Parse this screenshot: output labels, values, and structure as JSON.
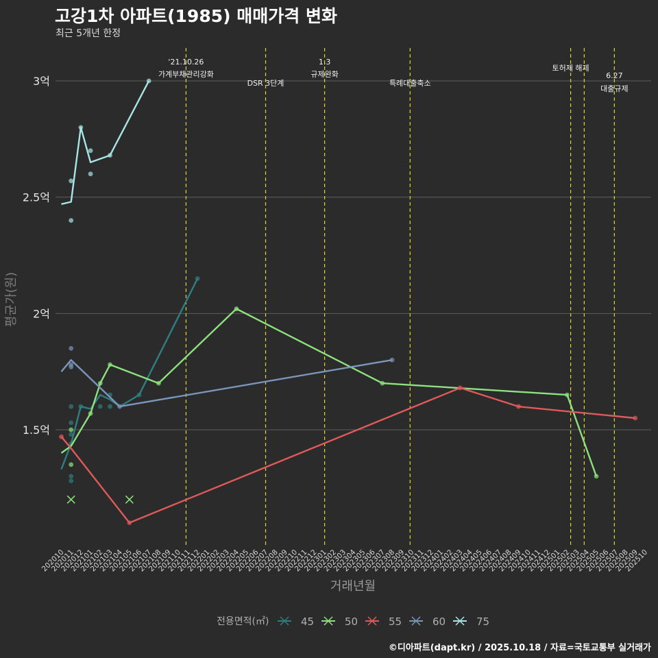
{
  "title": "고강1차 아파트(1985) 매매가격 변화",
  "subtitle": "최근 5개년 한정",
  "caption": "©디아파트(dapt.kr) / 2025.10.18 / 자료=국토교통부 실거래가",
  "chart_data": {
    "type": "line",
    "xlabel": "거래년월",
    "ylabel": "평균가(원)",
    "ylim": [
      1.0,
      3.15
    ],
    "yticks": [
      {
        "v": 1.5,
        "label": "1.5억"
      },
      {
        "v": 2.0,
        "label": "2억"
      },
      {
        "v": 2.5,
        "label": "2.5억"
      },
      {
        "v": 3.0,
        "label": "3억"
      }
    ],
    "x_start": "2020-10",
    "x_end": "2025-10",
    "x_ticks": [
      "202010",
      "202011",
      "202012",
      "202101",
      "202102",
      "202103",
      "202104",
      "202105",
      "202106",
      "202107",
      "202108",
      "202109",
      "202110",
      "202111",
      "202112",
      "202201",
      "202202",
      "202203",
      "202204",
      "202205",
      "202206",
      "202207",
      "202208",
      "202209",
      "202210",
      "202211",
      "202212",
      "202301",
      "202302",
      "202303",
      "202304",
      "202305",
      "202306",
      "202307",
      "202308",
      "202309",
      "202310",
      "202311",
      "202312",
      "202401",
      "202402",
      "202403",
      "202404",
      "202405",
      "202406",
      "202407",
      "202408",
      "202409",
      "202410",
      "202411",
      "202412",
      "202501",
      "202502",
      "202503",
      "202504",
      "202505",
      "202506",
      "202507",
      "202508",
      "202509",
      "202510"
    ],
    "legend_title": "전용면적(㎡)",
    "legend_position": "bottom",
    "events": [
      {
        "date": "2021-10-26",
        "labels": [
          "'21.10.26",
          "가계부채관리강화"
        ],
        "level": "top"
      },
      {
        "date": "2022-07-01",
        "labels": [
          "DSR 3단계"
        ],
        "level": "low"
      },
      {
        "date": "2023-01-03",
        "labels": [
          "1.3",
          "규제완화"
        ],
        "level": "top"
      },
      {
        "date": "2023-09-27",
        "labels": [
          "특례대출축소"
        ],
        "level": "low"
      },
      {
        "date": "2025-02-12",
        "labels": [
          "토허제 해제"
        ],
        "level": "mid"
      },
      {
        "date": "2025-03-24",
        "labels": [],
        "level": "none"
      },
      {
        "date": "2025-06-27",
        "labels": [
          "6.27",
          "대출규제"
        ],
        "level": "lower"
      }
    ],
    "series": [
      {
        "name": "45",
        "color": "#2f7f80",
        "line": [
          [
            "2020-10",
            1.33
          ],
          [
            "2020-11",
            1.44
          ],
          [
            "2020-12",
            1.6
          ],
          [
            "2021-01",
            1.59
          ],
          [
            "2021-02",
            1.65
          ],
          [
            "2021-03",
            1.63
          ],
          [
            "2021-04",
            1.6
          ],
          [
            "2021-06",
            1.65
          ],
          [
            "2021-12",
            2.15
          ]
        ],
        "points": [
          [
            "2020-11",
            1.6
          ],
          [
            "2020-11",
            1.53
          ],
          [
            "2020-11",
            1.48
          ],
          [
            "2020-11",
            1.44
          ],
          [
            "2020-11",
            1.3
          ],
          [
            "2020-11",
            1.28
          ],
          [
            "2020-12",
            1.6
          ],
          [
            "2021-02",
            1.6
          ],
          [
            "2021-03",
            1.6
          ],
          [
            "2021-03",
            1.65
          ],
          [
            "2021-06",
            1.65
          ],
          [
            "2021-12",
            2.15
          ]
        ],
        "cancelled": []
      },
      {
        "name": "50",
        "color": "#8ee27e",
        "line": [
          [
            "2020-10",
            1.4
          ],
          [
            "2020-11",
            1.43
          ],
          [
            "2021-01",
            1.57
          ],
          [
            "2021-02",
            1.7
          ],
          [
            "2021-03",
            1.78
          ],
          [
            "2021-08",
            1.7
          ],
          [
            "2022-04",
            2.02
          ],
          [
            "2023-07",
            1.7
          ],
          [
            "2025-02",
            1.65
          ],
          [
            "2025-05",
            1.3
          ]
        ],
        "points": [
          [
            "2020-11",
            1.5
          ],
          [
            "2020-11",
            1.35
          ],
          [
            "2021-01",
            1.57
          ],
          [
            "2021-02",
            1.7
          ],
          [
            "2021-03",
            1.78
          ],
          [
            "2021-08",
            1.7
          ],
          [
            "2022-04",
            2.02
          ],
          [
            "2023-07",
            1.7
          ],
          [
            "2025-02",
            1.65
          ],
          [
            "2025-05",
            1.3
          ]
        ],
        "cancelled": [
          [
            "2020-11",
            1.2
          ],
          [
            "2021-05",
            1.2
          ]
        ]
      },
      {
        "name": "55",
        "color": "#e05a5a",
        "line": [
          [
            "2020-10",
            1.47
          ],
          [
            "2020-11",
            1.42
          ],
          [
            "2021-05",
            1.1
          ],
          [
            "2024-03",
            1.68
          ],
          [
            "2024-09",
            1.6
          ],
          [
            "2025-09",
            1.55
          ]
        ],
        "points": [
          [
            "2020-10",
            1.47
          ],
          [
            "2021-05",
            1.1
          ],
          [
            "2024-03",
            1.68
          ],
          [
            "2024-09",
            1.6
          ],
          [
            "2025-09",
            1.55
          ]
        ],
        "cancelled": []
      },
      {
        "name": "60",
        "color": "#7a96bb",
        "line": [
          [
            "2020-10",
            1.75
          ],
          [
            "2020-11",
            1.8
          ],
          [
            "2021-04",
            1.6
          ],
          [
            "2023-08",
            1.8
          ]
        ],
        "points": [
          [
            "2020-11",
            1.85
          ],
          [
            "2020-11",
            1.78
          ],
          [
            "2020-11",
            1.77
          ],
          [
            "2021-04",
            1.6
          ],
          [
            "2023-08",
            1.8
          ]
        ],
        "cancelled": []
      },
      {
        "name": "75",
        "color": "#a8e6e6",
        "line": [
          [
            "2020-10",
            2.47
          ],
          [
            "2020-11",
            2.48
          ],
          [
            "2020-12",
            2.8
          ],
          [
            "2021-01",
            2.65
          ],
          [
            "2021-03",
            2.68
          ],
          [
            "2021-07",
            3.0
          ]
        ],
        "points": [
          [
            "2020-11",
            2.57
          ],
          [
            "2020-11",
            2.4
          ],
          [
            "2020-12",
            2.8
          ],
          [
            "2021-01",
            2.7
          ],
          [
            "2021-01",
            2.6
          ],
          [
            "2021-03",
            2.68
          ],
          [
            "2021-07",
            3.0
          ]
        ],
        "cancelled": []
      }
    ]
  }
}
